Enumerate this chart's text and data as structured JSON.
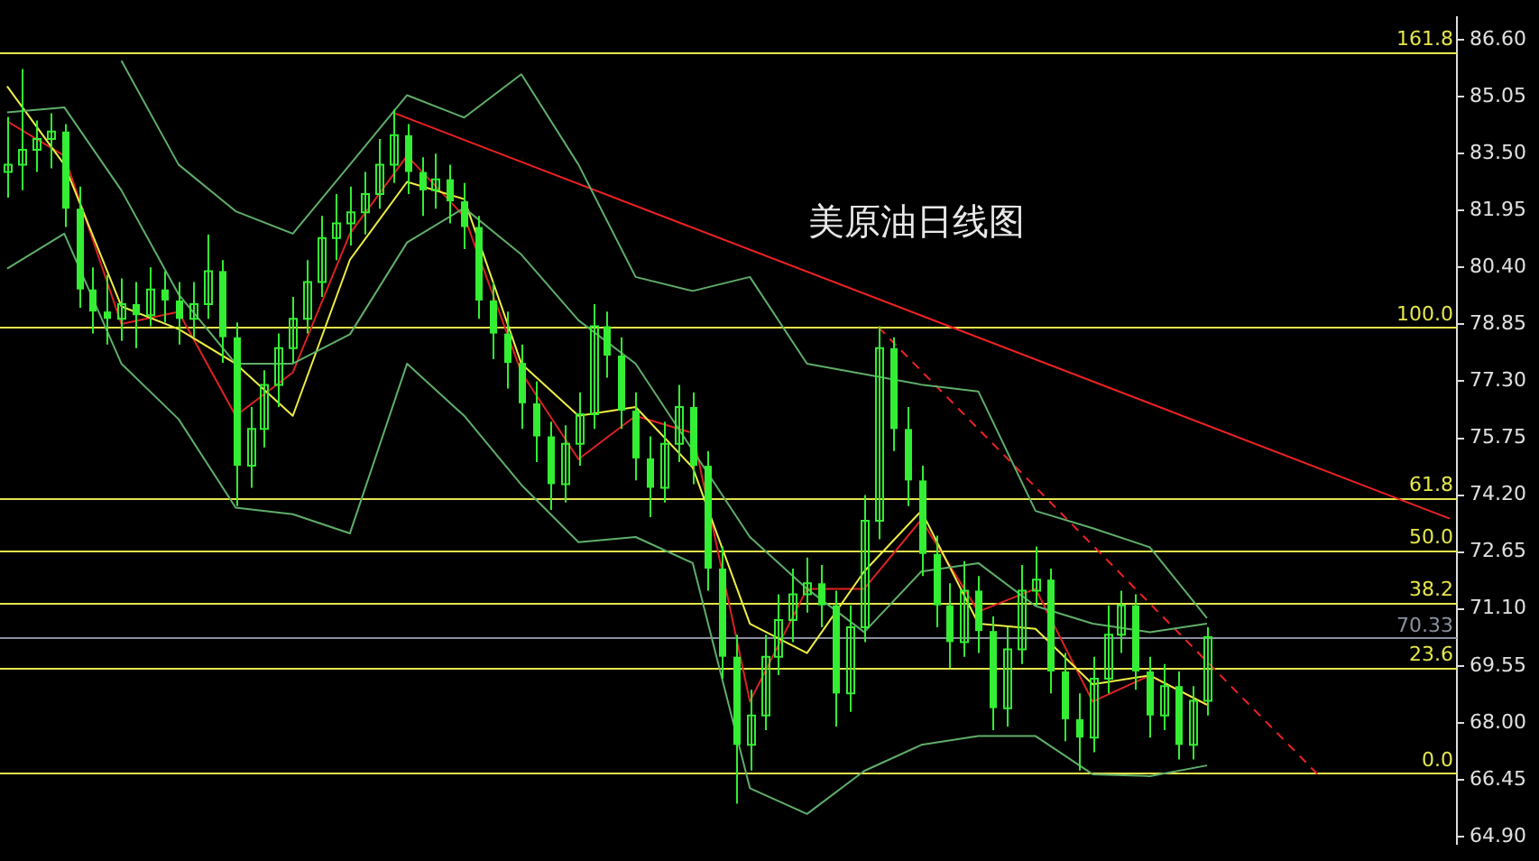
{
  "chart_data": {
    "type": "candlestick",
    "title": "美原油日线图",
    "color": "#33ee33",
    "tick_labels": "y",
    "categories": [
      null,
      null,
      null,
      null,
      null,
      null,
      null,
      null,
      null,
      null,
      null,
      null,
      null,
      null,
      null,
      null,
      null,
      null,
      null,
      null,
      null,
      null,
      null,
      null,
      null,
      null,
      null,
      null,
      null,
      null,
      null,
      null,
      null,
      null,
      null,
      null,
      null,
      null,
      null,
      null,
      null,
      null,
      null,
      null,
      null,
      null,
      null,
      null,
      null,
      null,
      null,
      null,
      null,
      null,
      null,
      null,
      null,
      null,
      null,
      null,
      null,
      null,
      null,
      null,
      null,
      null,
      null,
      null,
      null,
      null,
      null,
      null,
      null,
      null,
      null,
      null,
      null,
      null,
      null,
      null,
      null,
      null,
      null,
      null,
      null,
      null,
      null,
      null,
      null,
      null,
      null,
      null,
      null,
      null,
      null,
      null,
      null,
      null,
      null,
      null,
      null,
      null
    ],
    "ohlc": [
      [
        83.0,
        84.5,
        82.3,
        83.2
      ],
      [
        83.2,
        85.8,
        82.5,
        83.6
      ],
      [
        83.6,
        84.4,
        83.0,
        83.9
      ],
      [
        83.9,
        84.6,
        83.1,
        84.1
      ],
      [
        84.1,
        84.3,
        81.5,
        82.0
      ],
      [
        82.0,
        82.6,
        79.3,
        79.8
      ],
      [
        79.8,
        80.4,
        78.6,
        79.2
      ],
      [
        79.2,
        80.2,
        78.3,
        79.0
      ],
      [
        79.0,
        80.1,
        78.4,
        79.4
      ],
      [
        79.4,
        80.0,
        78.2,
        79.1
      ],
      [
        79.1,
        80.4,
        78.8,
        79.8
      ],
      [
        79.8,
        80.3,
        78.9,
        79.5
      ],
      [
        79.5,
        80.0,
        78.3,
        79.0
      ],
      [
        79.0,
        80.0,
        78.5,
        79.4
      ],
      [
        79.4,
        81.3,
        79.0,
        80.3
      ],
      [
        80.3,
        80.6,
        77.8,
        78.5
      ],
      [
        78.5,
        78.9,
        73.9,
        75.0
      ],
      [
        75.0,
        76.6,
        74.4,
        76.0
      ],
      [
        76.0,
        77.6,
        75.5,
        77.2
      ],
      [
        77.2,
        78.6,
        76.6,
        78.2
      ],
      [
        78.2,
        79.6,
        77.8,
        79.0
      ],
      [
        79.0,
        80.6,
        78.6,
        80.0
      ],
      [
        80.0,
        81.8,
        79.6,
        81.2
      ],
      [
        81.2,
        82.4,
        80.6,
        81.6
      ],
      [
        81.6,
        82.6,
        81.0,
        81.9
      ],
      [
        81.9,
        83.0,
        81.3,
        82.4
      ],
      [
        82.4,
        83.9,
        82.0,
        83.2
      ],
      [
        83.2,
        84.7,
        82.7,
        84.0
      ],
      [
        84.0,
        84.3,
        82.4,
        83.0
      ],
      [
        83.0,
        83.4,
        81.8,
        82.5
      ],
      [
        82.5,
        83.5,
        82.0,
        82.8
      ],
      [
        82.8,
        83.2,
        81.6,
        82.2
      ],
      [
        82.2,
        82.7,
        80.9,
        81.5
      ],
      [
        81.5,
        81.8,
        79.0,
        79.5
      ],
      [
        79.5,
        80.0,
        77.9,
        78.6
      ],
      [
        78.6,
        79.2,
        77.1,
        77.8
      ],
      [
        77.8,
        78.3,
        76.0,
        76.7
      ],
      [
        76.7,
        77.3,
        75.1,
        75.8
      ],
      [
        75.8,
        76.2,
        73.8,
        74.5
      ],
      [
        74.5,
        76.1,
        74.0,
        75.6
      ],
      [
        75.6,
        77.0,
        75.0,
        76.4
      ],
      [
        76.4,
        79.4,
        76.0,
        78.8
      ],
      [
        78.8,
        79.2,
        77.4,
        78.0
      ],
      [
        78.0,
        78.5,
        76.0,
        76.5
      ],
      [
        76.5,
        77.0,
        74.6,
        75.2
      ],
      [
        75.2,
        75.8,
        73.6,
        74.4
      ],
      [
        74.4,
        76.2,
        74.0,
        75.6
      ],
      [
        75.6,
        77.2,
        75.1,
        76.6
      ],
      [
        76.6,
        77.0,
        74.5,
        75.0
      ],
      [
        75.0,
        75.4,
        71.6,
        72.2
      ],
      [
        72.2,
        72.8,
        69.2,
        69.8
      ],
      [
        69.8,
        70.4,
        65.8,
        67.4
      ],
      [
        67.4,
        68.9,
        66.7,
        68.2
      ],
      [
        68.2,
        70.4,
        67.8,
        69.8
      ],
      [
        69.8,
        71.5,
        69.3,
        70.8
      ],
      [
        70.8,
        72.2,
        70.2,
        71.5
      ],
      [
        71.5,
        72.5,
        71.0,
        71.8
      ],
      [
        71.8,
        72.3,
        70.6,
        71.2
      ],
      [
        71.2,
        71.6,
        67.9,
        68.8
      ],
      [
        68.8,
        71.2,
        68.3,
        70.6
      ],
      [
        70.6,
        74.2,
        70.2,
        73.5
      ],
      [
        73.5,
        78.8,
        73.0,
        78.2
      ],
      [
        78.2,
        78.5,
        75.4,
        76.0
      ],
      [
        76.0,
        76.6,
        73.9,
        74.6
      ],
      [
        74.6,
        75.0,
        72.0,
        72.6
      ],
      [
        72.6,
        73.1,
        70.6,
        71.2
      ],
      [
        71.2,
        71.8,
        69.5,
        70.2
      ],
      [
        70.2,
        72.4,
        69.8,
        71.6
      ],
      [
        71.6,
        72.0,
        69.9,
        70.5
      ],
      [
        70.5,
        70.9,
        67.8,
        68.4
      ],
      [
        68.4,
        70.6,
        67.9,
        70.0
      ],
      [
        70.0,
        72.3,
        69.6,
        71.6
      ],
      [
        71.6,
        72.8,
        71.2,
        71.9
      ],
      [
        71.9,
        72.2,
        68.8,
        69.4
      ],
      [
        69.4,
        69.9,
        67.5,
        68.1
      ],
      [
        68.1,
        68.8,
        66.7,
        67.6
      ],
      [
        67.6,
        69.8,
        67.2,
        69.2
      ],
      [
        69.2,
        71.2,
        68.8,
        70.4
      ],
      [
        70.4,
        71.6,
        69.9,
        71.2
      ],
      [
        71.2,
        71.5,
        68.9,
        69.4
      ],
      [
        69.4,
        69.8,
        67.6,
        68.2
      ],
      [
        68.2,
        69.6,
        67.8,
        69.0
      ],
      [
        69.0,
        69.4,
        67.0,
        67.4
      ],
      [
        67.4,
        69.0,
        67.0,
        68.6
      ],
      [
        68.6,
        70.6,
        68.2,
        70.33
      ],
      null,
      null,
      null,
      null,
      null,
      null,
      null,
      null,
      null,
      null,
      null,
      null,
      null,
      null,
      null,
      null,
      null
    ],
    "series": [
      {
        "type": "line",
        "color": "#5fae6a",
        "values": [
          null,
          null,
          null,
          null,
          null,
          null,
          null,
          null,
          86.03,
          null,
          null,
          null,
          83.2,
          null,
          null,
          null,
          81.93,
          null,
          null,
          null,
          81.32,
          null,
          null,
          null,
          83.2,
          null,
          null,
          null,
          85.09,
          null,
          null,
          null,
          84.48,
          null,
          null,
          null,
          85.66,
          null,
          null,
          null,
          83.2,
          null,
          null,
          null,
          80.14,
          null,
          null,
          null,
          79.76,
          null,
          null,
          null,
          80.14,
          null,
          null,
          null,
          77.78,
          null,
          null,
          null,
          null,
          null,
          null,
          null,
          77.21,
          null,
          null,
          null,
          77.02,
          null,
          null,
          null,
          73.77,
          null,
          null,
          null,
          73.3,
          null,
          null,
          null,
          72.78,
          null,
          null,
          null,
          70.85,
          null,
          null,
          null,
          null,
          null,
          null,
          null,
          null,
          null,
          null,
          null,
          null,
          null,
          null,
          null,
          null,
          null
        ]
      },
      {
        "type": "line",
        "color": "#5fae6a",
        "values": [
          84.62,
          null,
          null,
          null,
          84.76,
          null,
          null,
          null,
          82.5,
          null,
          null,
          null,
          79.67,
          null,
          null,
          null,
          77.78,
          null,
          null,
          null,
          77.78,
          null,
          null,
          null,
          78.58,
          null,
          null,
          null,
          81.08,
          null,
          null,
          null,
          82.02,
          null,
          null,
          null,
          80.75,
          null,
          null,
          null,
          78.96,
          null,
          null,
          null,
          77.78,
          null,
          null,
          null,
          75.42,
          null,
          null,
          null,
          73.06,
          null,
          null,
          null,
          71.65,
          null,
          null,
          null,
          70.47,
          null,
          null,
          null,
          72.12,
          null,
          null,
          null,
          72.35,
          null,
          null,
          null,
          71.18,
          null,
          null,
          null,
          70.7,
          null,
          null,
          null,
          70.47,
          null,
          null,
          null,
          70.7,
          null,
          null,
          null,
          null,
          null,
          null,
          null,
          null,
          null,
          null,
          null,
          null,
          null,
          null,
          null,
          null,
          null
        ]
      },
      {
        "type": "line",
        "color": "#5fae6a",
        "values": [
          80.37,
          null,
          null,
          null,
          81.32,
          null,
          null,
          null,
          77.78,
          null,
          null,
          null,
          76.27,
          null,
          null,
          null,
          73.86,
          null,
          null,
          null,
          73.68,
          null,
          null,
          null,
          73.16,
          null,
          null,
          null,
          77.78,
          null,
          null,
          null,
          76.36,
          null,
          null,
          null,
          74.48,
          null,
          null,
          null,
          72.92,
          null,
          null,
          null,
          73.06,
          null,
          null,
          null,
          72.35,
          null,
          null,
          null,
          66.22,
          null,
          null,
          null,
          65.52,
          null,
          null,
          null,
          66.69,
          null,
          null,
          null,
          67.4,
          null,
          null,
          null,
          67.64,
          null,
          null,
          null,
          67.64,
          null,
          null,
          null,
          66.6,
          null,
          null,
          null,
          66.55,
          null,
          null,
          null,
          66.84,
          null,
          null,
          null,
          null,
          null,
          null,
          null,
          null,
          null,
          null,
          null,
          null,
          null,
          null,
          null,
          null,
          null
        ]
      },
      {
        "type": "line",
        "color": "#eeee44",
        "values": [
          85.33,
          null,
          null,
          null,
          83.2,
          null,
          null,
          null,
          79.34,
          null,
          null,
          null,
          78.72,
          null,
          null,
          null,
          77.78,
          null,
          null,
          null,
          76.36,
          null,
          null,
          null,
          80.61,
          null,
          null,
          null,
          82.73,
          null,
          null,
          null,
          82.26,
          null,
          null,
          null,
          77.78,
          null,
          null,
          null,
          76.36,
          null,
          null,
          null,
          76.6,
          null,
          null,
          null,
          74.95,
          null,
          null,
          null,
          70.7,
          null,
          null,
          null,
          69.9,
          null,
          null,
          null,
          72.12,
          null,
          null,
          null,
          73.77,
          null,
          null,
          null,
          70.7,
          null,
          null,
          null,
          70.56,
          null,
          null,
          null,
          69.05,
          null,
          null,
          null,
          69.29,
          null,
          null,
          null,
          68.49,
          null,
          null,
          null,
          null,
          null,
          null,
          null,
          null,
          null,
          null,
          null,
          null,
          null,
          null,
          null,
          null,
          null
        ]
      },
      {
        "type": "line",
        "color": "#dd2222",
        "values": [
          84.38,
          null,
          null,
          null,
          83.44,
          null,
          null,
          null,
          78.86,
          null,
          null,
          null,
          79.19,
          null,
          null,
          null,
          76.36,
          null,
          null,
          null,
          77.54,
          null,
          null,
          null,
          81.32,
          null,
          null,
          null,
          83.44,
          null,
          null,
          null,
          81.79,
          null,
          null,
          null,
          77.54,
          null,
          null,
          null,
          75.18,
          null,
          null,
          null,
          76.36,
          null,
          null,
          null,
          75.89,
          null,
          null,
          null,
          68.58,
          null,
          null,
          null,
          71.65,
          null,
          null,
          null,
          71.65,
          null,
          null,
          null,
          73.53,
          null,
          null,
          null,
          71.03,
          null,
          null,
          null,
          71.65,
          null,
          null,
          null,
          68.58,
          null,
          null,
          null,
          69.29,
          null,
          null,
          null,
          68.49,
          null,
          null,
          null,
          null,
          null,
          null,
          null,
          null,
          null,
          null,
          null,
          null,
          null,
          null,
          null,
          null,
          null
        ]
      },
      {
        "type": "line",
        "color": "#ee2222",
        "values": [
          null,
          null,
          null,
          null,
          null,
          null,
          null,
          null,
          null,
          null,
          null,
          null,
          null,
          null,
          null,
          null,
          null,
          null,
          null,
          null,
          null,
          null,
          null,
          null,
          null,
          null,
          null,
          84.62,
          null,
          null,
          null,
          null,
          null,
          null,
          null,
          null,
          null,
          null,
          null,
          null,
          null,
          null,
          null,
          null,
          null,
          null,
          null,
          null,
          null,
          null,
          null,
          null,
          null,
          null,
          null,
          null,
          null,
          null,
          null,
          null,
          null,
          null,
          null,
          null,
          null,
          null,
          null,
          null,
          null,
          null,
          null,
          null,
          null,
          null,
          null,
          null,
          null,
          null,
          null,
          null,
          null,
          null,
          null,
          null,
          null,
          null,
          null,
          null,
          null,
          null,
          null,
          null,
          null,
          null,
          null,
          null,
          null,
          null,
          null,
          null,
          null,
          73.56
        ]
      },
      {
        "type": "line",
        "color": "#ee2222",
        "line_style": "dashed",
        "values": [
          null,
          null,
          null,
          null,
          null,
          null,
          null,
          null,
          null,
          null,
          null,
          null,
          null,
          null,
          null,
          null,
          null,
          null,
          null,
          null,
          null,
          null,
          null,
          null,
          null,
          null,
          null,
          null,
          null,
          null,
          null,
          null,
          null,
          null,
          null,
          null,
          null,
          null,
          null,
          null,
          null,
          null,
          null,
          null,
          null,
          null,
          null,
          null,
          null,
          null,
          null,
          null,
          null,
          null,
          null,
          null,
          null,
          null,
          null,
          null,
          null,
          78.77,
          null,
          null,
          null,
          null,
          null,
          null,
          null,
          null,
          null,
          null,
          null,
          null,
          null,
          null,
          null,
          null,
          null,
          null,
          null,
          null,
          null,
          null,
          null,
          null,
          null,
          null,
          null,
          null,
          null,
          null,
          66.5,
          null,
          null,
          null,
          null,
          null,
          null,
          null,
          null,
          null
        ]
      }
    ],
    "ref_lines": [
      {
        "axis": "y",
        "value": 86.27,
        "color": "#e6e64c"
      },
      {
        "axis": "y",
        "value": 78.77,
        "color": "#e6e64c"
      },
      {
        "axis": "y",
        "value": 74.14,
        "color": "#e6e64c"
      },
      {
        "axis": "y",
        "value": 72.71,
        "color": "#e6e64c"
      },
      {
        "axis": "y",
        "value": 71.28,
        "color": "#e6e64c"
      },
      {
        "axis": "y",
        "value": 69.51,
        "color": "#e6e64c"
      },
      {
        "axis": "y",
        "value": 70.33,
        "label": "70.33",
        "color": "#8a90a0"
      },
      {
        "axis": "y",
        "value": 66.65,
        "color": "#e6e64c"
      }
    ],
    "annotations": [
      {
        "text": "161.8",
        "y": 86.27
      },
      {
        "text": "100.0",
        "y": 78.77
      },
      {
        "text": "61.8",
        "y": 74.14
      },
      {
        "text": "50.0",
        "y": 72.71
      },
      {
        "text": "38.2",
        "y": 71.28
      },
      {
        "text": "23.6",
        "y": 69.51
      },
      {
        "text": "0.0",
        "y": 66.65
      }
    ],
    "ylim": [
      64.71,
      87.21
    ],
    "yticks": [
      {
        "value": 64.9,
        "label": "64.90"
      },
      {
        "value": 66.45,
        "label": "66.45"
      },
      {
        "value": 68,
        "label": "68.00"
      },
      {
        "value": 69.55,
        "label": "69.55"
      },
      {
        "value": 71.1,
        "label": "71.10"
      },
      {
        "value": 72.65,
        "label": "72.65"
      },
      {
        "value": 74.2,
        "label": "74.20"
      },
      {
        "value": 75.75,
        "label": "75.75"
      },
      {
        "value": 77.3,
        "label": "77.30"
      },
      {
        "value": 78.85,
        "label": "78.85"
      },
      {
        "value": 80.4,
        "label": "80.40"
      },
      {
        "value": 81.95,
        "label": "81.95"
      },
      {
        "value": 83.5,
        "label": "83.50"
      },
      {
        "value": 85.05,
        "label": "85.05"
      },
      {
        "value": 86.6,
        "label": "86.60"
      }
    ]
  }
}
